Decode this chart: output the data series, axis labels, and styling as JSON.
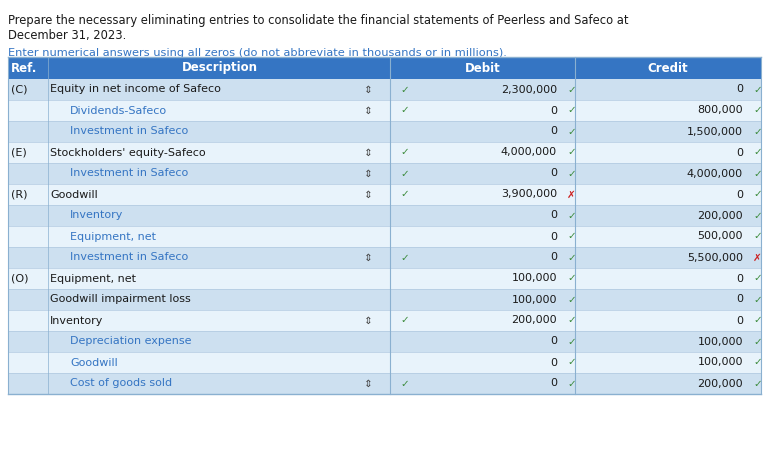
{
  "title_line1": "Prepare the necessary eliminating entries to consolidate the financial statements of Peerless and Safeco at",
  "title_line2": "December 31, 2023.",
  "subtitle_text": "Enter numerical answers using all zeros (do not abbreviate in thousands or in millions).",
  "header_bg": "#3575c3",
  "header_fg": "#ffffff",
  "rows": [
    {
      "ref": "(C)",
      "desc": "Equity in net income of Safeco",
      "has_arrows": true,
      "debit": "2,300,000",
      "debit_mark": "green",
      "credit": "0",
      "credit_mark": "green",
      "indent": false,
      "debit_prefix_check": true
    },
    {
      "ref": "",
      "desc": "Dividends-Safeco",
      "has_arrows": true,
      "debit": "0",
      "debit_mark": "green",
      "credit": "800,000",
      "credit_mark": "green",
      "indent": true,
      "debit_prefix_check": true
    },
    {
      "ref": "",
      "desc": "Investment in Safeco",
      "has_arrows": false,
      "debit": "0",
      "debit_mark": "green",
      "credit": "1,500,000",
      "credit_mark": "green",
      "indent": true,
      "debit_prefix_check": false
    },
    {
      "ref": "(E)",
      "desc": "Stockholders' equity-Safeco",
      "has_arrows": true,
      "debit": "4,000,000",
      "debit_mark": "green",
      "credit": "0",
      "credit_mark": "green",
      "indent": false,
      "debit_prefix_check": true
    },
    {
      "ref": "",
      "desc": "Investment in Safeco",
      "has_arrows": true,
      "debit": "0",
      "debit_mark": "green",
      "credit": "4,000,000",
      "credit_mark": "green",
      "indent": true,
      "debit_prefix_check": true
    },
    {
      "ref": "(R)",
      "desc": "Goodwill",
      "has_arrows": true,
      "debit": "3,900,000",
      "debit_mark": "red",
      "credit": "0",
      "credit_mark": "green",
      "indent": false,
      "debit_prefix_check": true
    },
    {
      "ref": "",
      "desc": "Inventory",
      "has_arrows": false,
      "debit": "0",
      "debit_mark": "green",
      "credit": "200,000",
      "credit_mark": "green",
      "indent": true,
      "debit_prefix_check": false
    },
    {
      "ref": "",
      "desc": "Equipment, net",
      "has_arrows": false,
      "debit": "0",
      "debit_mark": "green",
      "credit": "500,000",
      "credit_mark": "green",
      "indent": true,
      "debit_prefix_check": false
    },
    {
      "ref": "",
      "desc": "Investment in Safeco",
      "has_arrows": true,
      "debit": "0",
      "debit_mark": "green",
      "credit": "5,500,000",
      "credit_mark": "red",
      "indent": true,
      "debit_prefix_check": true
    },
    {
      "ref": "(O)",
      "desc": "Equipment, net",
      "has_arrows": false,
      "debit": "100,000",
      "debit_mark": "green",
      "credit": "0",
      "credit_mark": "green",
      "indent": false,
      "debit_prefix_check": false
    },
    {
      "ref": "",
      "desc": "Goodwill impairment loss",
      "has_arrows": false,
      "debit": "100,000",
      "debit_mark": "green",
      "credit": "0",
      "credit_mark": "green",
      "indent": false,
      "debit_prefix_check": false
    },
    {
      "ref": "",
      "desc": "Inventory",
      "has_arrows": true,
      "debit": "200,000",
      "debit_mark": "green",
      "credit": "0",
      "credit_mark": "green",
      "indent": false,
      "debit_prefix_check": true
    },
    {
      "ref": "",
      "desc": "Depreciation expense",
      "has_arrows": false,
      "debit": "0",
      "debit_mark": "green",
      "credit": "100,000",
      "credit_mark": "green",
      "indent": true,
      "debit_prefix_check": false
    },
    {
      "ref": "",
      "desc": "Goodwill",
      "has_arrows": false,
      "debit": "0",
      "debit_mark": "green",
      "credit": "100,000",
      "credit_mark": "green",
      "indent": true,
      "debit_prefix_check": false
    },
    {
      "ref": "",
      "desc": "Cost of goods sold",
      "has_arrows": true,
      "debit": "0",
      "debit_mark": "green",
      "credit": "200,000",
      "credit_mark": "green",
      "indent": true,
      "debit_prefix_check": true
    }
  ],
  "row_bg_dark": "#cde0f0",
  "row_bg_light": "#e8f3fb",
  "text_dark": "#1a1a1a",
  "text_blue": "#3575c3",
  "check_green": "#3a8a3a",
  "check_red": "#cc2222",
  "arrow_color": "#444444"
}
